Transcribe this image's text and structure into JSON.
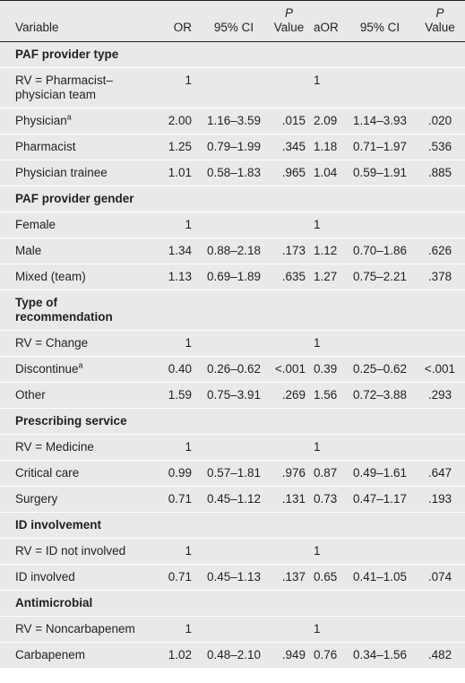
{
  "table": {
    "header": {
      "variable": "Variable",
      "or": "OR",
      "ci": "95% CI",
      "p": {
        "italic": "P",
        "text": "Value"
      },
      "aor": "aOR",
      "aci": "95% CI",
      "ap": {
        "italic": "P",
        "text": "Value"
      }
    },
    "rows": [
      {
        "section": "PAF provider type"
      },
      {
        "variable": "RV = Pharmacist–physician team",
        "or": "1",
        "aor": "1"
      },
      {
        "variable": "Physician",
        "note": "a",
        "or": "2.00",
        "ci": "1.16–3.59",
        "p": ".015",
        "aor": "2.09",
        "aci": "1.14–3.93",
        "ap": ".020"
      },
      {
        "variable": "Pharmacist",
        "or": "1.25",
        "ci": "0.79–1.99",
        "p": ".345",
        "aor": "1.18",
        "aci": "0.71–1.97",
        "ap": ".536"
      },
      {
        "variable": "Physician trainee",
        "or": "1.01",
        "ci": "0.58–1.83",
        "p": ".965",
        "aor": "1.04",
        "aci": "0.59–1.91",
        "ap": ".885"
      },
      {
        "section": "PAF provider gender"
      },
      {
        "variable": "Female",
        "or": "1",
        "aor": "1"
      },
      {
        "variable": "Male",
        "or": "1.34",
        "ci": "0.88–2.18",
        "p": ".173",
        "aor": "1.12",
        "aci": "0.70–1.86",
        "ap": ".626"
      },
      {
        "variable": "Mixed (team)",
        "or": "1.13",
        "ci": "0.69–1.89",
        "p": ".635",
        "aor": "1.27",
        "aci": "0.75–2.21",
        "ap": ".378"
      },
      {
        "section": "Type of recommendation"
      },
      {
        "variable": "RV = Change",
        "or": "1",
        "aor": "1"
      },
      {
        "variable": "Discontinue",
        "note": "a",
        "or": "0.40",
        "ci": "0.26–0.62",
        "p": "<.001",
        "aor": "0.39",
        "aci": "0.25–0.62",
        "ap": "<.001"
      },
      {
        "variable": "Other",
        "or": "1.59",
        "ci": "0.75–3.91",
        "p": ".269",
        "aor": "1.56",
        "aci": "0.72–3.88",
        "ap": ".293"
      },
      {
        "section": "Prescribing service"
      },
      {
        "variable": "RV = Medicine",
        "or": "1",
        "aor": "1"
      },
      {
        "variable": "Critical care",
        "or": "0.99",
        "ci": "0.57–1.81",
        "p": ".976",
        "aor": "0.87",
        "aci": "0.49–1.61",
        "ap": ".647"
      },
      {
        "variable": "Surgery",
        "or": "0.71",
        "ci": "0.45–1.12",
        "p": ".131",
        "aor": "0.73",
        "aci": "0.47–1.17",
        "ap": ".193"
      },
      {
        "section": "ID involvement"
      },
      {
        "variable": "RV = ID not involved",
        "or": "1",
        "aor": "1"
      },
      {
        "variable": "ID involved",
        "or": "0.71",
        "ci": "0.45–1.13",
        "p": ".137",
        "aor": "0.65",
        "aci": "0.41–1.05",
        "ap": ".074"
      },
      {
        "section": "Antimicrobial"
      },
      {
        "variable": "RV = Noncarbapenem",
        "or": "1",
        "aor": "1"
      },
      {
        "variable": "Carbapenem",
        "or": "1.02",
        "ci": "0.48–2.10",
        "p": ".949",
        "aor": "0.76",
        "aci": "0.34–1.56",
        "ap": ".482"
      }
    ]
  }
}
